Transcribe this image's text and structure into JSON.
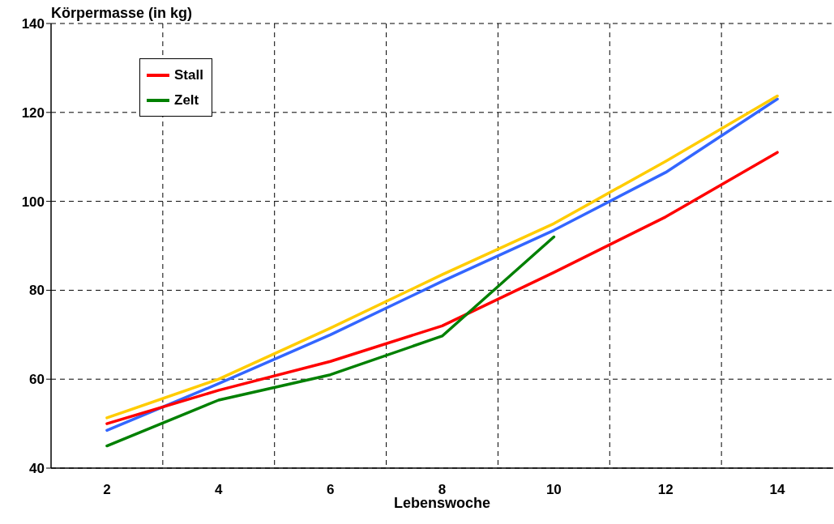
{
  "chart_data": {
    "type": "line",
    "title": "Körpermasse (in kg)",
    "xlabel": "Lebenswoche",
    "categories": [
      "2",
      "4",
      "6",
      "8",
      "10",
      "12",
      "14"
    ],
    "series": [
      {
        "color": "#3366ff",
        "values": [
          48.5,
          59,
          70,
          82,
          93.5,
          106.5,
          123
        ]
      },
      {
        "color": "#ffcc00",
        "values": [
          51.3,
          60,
          71.5,
          83.5,
          95,
          109,
          123.7
        ]
      },
      {
        "name": "Stall",
        "color": "#ff0000",
        "values": [
          50,
          57.5,
          64,
          72,
          84,
          96.5,
          111
        ]
      },
      {
        "name": "Zelt",
        "color": "#008000",
        "values": [
          45,
          55.3,
          61,
          69.7,
          92,
          null,
          null
        ]
      }
    ],
    "ylim": [
      40,
      140
    ],
    "yticks": [
      40,
      60,
      80,
      100,
      120,
      140
    ],
    "grid": true,
    "legend": "top left",
    "marker": "none",
    "line_style": "solid"
  }
}
